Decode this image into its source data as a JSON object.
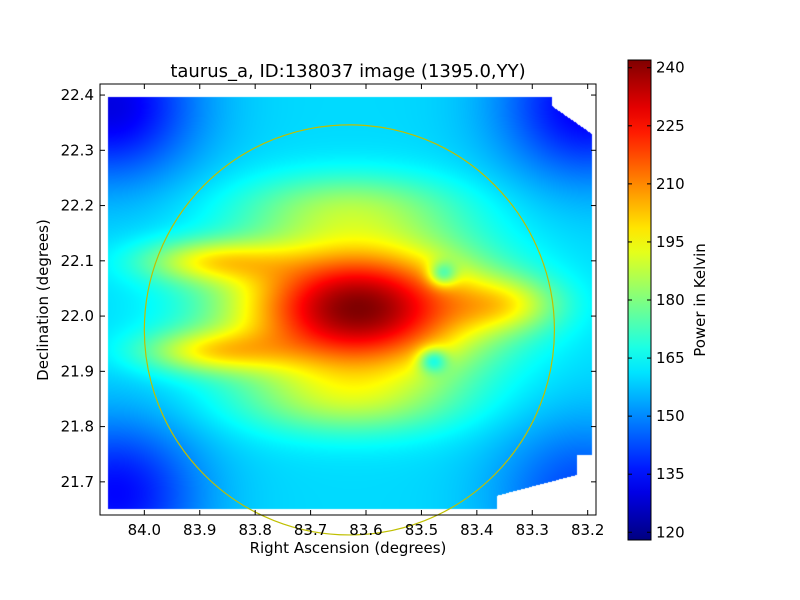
{
  "chart_data": {
    "type": "heatmap",
    "title": "taurus_a, ID:138037 image (1395.0,YY)",
    "xlabel": "Right Ascension (degrees)",
    "ylabel": "Declination (degrees)",
    "colorbar_label": "Power in Kelvin",
    "colormap": "jet",
    "x_reversed": true,
    "xlim": [
      84.08,
      83.185
    ],
    "ylim": [
      21.64,
      22.42
    ],
    "x_ticks": [
      84.0,
      83.9,
      83.8,
      83.7,
      83.6,
      83.5,
      83.4,
      83.3,
      83.2
    ],
    "x_tick_labels": [
      "84.0",
      "83.9",
      "83.8",
      "83.7",
      "83.6",
      "83.5",
      "83.4",
      "83.3",
      "83.2"
    ],
    "y_ticks": [
      21.7,
      21.8,
      21.9,
      22.0,
      22.1,
      22.2,
      22.3,
      22.4
    ],
    "y_tick_labels": [
      "21.7",
      "21.8",
      "21.9",
      "22.0",
      "22.1",
      "22.2",
      "22.3",
      "22.4"
    ],
    "color_range": [
      118,
      242
    ],
    "colorbar_ticks": [
      120,
      135,
      150,
      165,
      180,
      195,
      210,
      225,
      240
    ],
    "colorbar_tick_labels": [
      "120",
      "135",
      "150",
      "165",
      "180",
      "195",
      "210",
      "225",
      "240"
    ],
    "peak": {
      "ra": 83.6,
      "dec": 22.02,
      "value": 242
    },
    "background_level": 160,
    "circle": {
      "ra_center": 83.63,
      "dec_center": 21.975,
      "radius_deg": 0.37,
      "color": "#bfbf00"
    },
    "colors": {
      "axes": "#000000",
      "background": "#ffffff",
      "circle": "#bfbf00"
    }
  }
}
